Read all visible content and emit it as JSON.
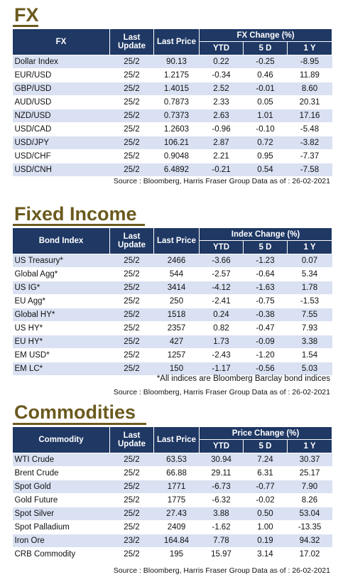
{
  "fx": {
    "title": "FX",
    "headers": {
      "name": "FX",
      "update": "Last Update",
      "price": "Last Price",
      "group": "FX Change (%)",
      "ytd": "YTD",
      "d5": "5 D",
      "y1": "1 Y"
    },
    "rows": [
      {
        "name": "Dollar Index",
        "update": "25/2",
        "price": "90.13",
        "ytd": "0.22",
        "d5": "-0.25",
        "y1": "-8.95"
      },
      {
        "name": "EUR/USD",
        "update": "25/2",
        "price": "1.2175",
        "ytd": "-0.34",
        "d5": "0.46",
        "y1": "11.89"
      },
      {
        "name": "GBP/USD",
        "update": "25/2",
        "price": "1.4015",
        "ytd": "2.52",
        "d5": "-0.01",
        "y1": "8.60"
      },
      {
        "name": "AUD/USD",
        "update": "25/2",
        "price": "0.7873",
        "ytd": "2.33",
        "d5": "0.05",
        "y1": "20.31"
      },
      {
        "name": "NZD/USD",
        "update": "25/2",
        "price": "0.7373",
        "ytd": "2.63",
        "d5": "1.01",
        "y1": "17.16"
      },
      {
        "name": "USD/CAD",
        "update": "25/2",
        "price": "1.2603",
        "ytd": "-0.96",
        "d5": "-0.10",
        "y1": "-5.48"
      },
      {
        "name": "USD/JPY",
        "update": "25/2",
        "price": "106.21",
        "ytd": "2.87",
        "d5": "0.72",
        "y1": "-3.82"
      },
      {
        "name": "USD/CHF",
        "update": "25/2",
        "price": "0.9048",
        "ytd": "2.21",
        "d5": "0.95",
        "y1": "-7.37"
      },
      {
        "name": "USD/CNH",
        "update": "25/2",
        "price": "6.4892",
        "ytd": "-0.21",
        "d5": "0.54",
        "y1": "-7.58"
      }
    ],
    "source": "Source : Bloomberg, Harris Fraser Group Data as of : 26-02-2021"
  },
  "fixed_income": {
    "title": "Fixed Income",
    "headers": {
      "name": "Bond Index",
      "update": "Last Update",
      "price": "Last Price",
      "group": "Index Change (%)",
      "ytd": "YTD",
      "d5": "5 D",
      "y1": "1 Y"
    },
    "rows": [
      {
        "name": "US Treasury*",
        "update": "25/2",
        "price": "2466",
        "ytd": "-3.66",
        "d5": "-1.23",
        "y1": "0.07"
      },
      {
        "name": "Global Agg*",
        "update": "25/2",
        "price": "544",
        "ytd": "-2.57",
        "d5": "-0.64",
        "y1": "5.34"
      },
      {
        "name": "US IG*",
        "update": "25/2",
        "price": "3414",
        "ytd": "-4.12",
        "d5": "-1.63",
        "y1": "1.78"
      },
      {
        "name": "EU Agg*",
        "update": "25/2",
        "price": "250",
        "ytd": "-2.41",
        "d5": "-0.75",
        "y1": "-1.53"
      },
      {
        "name": "Global HY*",
        "update": "25/2",
        "price": "1518",
        "ytd": "0.24",
        "d5": "-0.38",
        "y1": "7.55"
      },
      {
        "name": "US HY*",
        "update": "25/2",
        "price": "2357",
        "ytd": "0.82",
        "d5": "-0.47",
        "y1": "7.93"
      },
      {
        "name": "EU HY*",
        "update": "25/2",
        "price": "427",
        "ytd": "1.73",
        "d5": "-0.09",
        "y1": "3.38"
      },
      {
        "name": "EM USD*",
        "update": "25/2",
        "price": "1257",
        "ytd": "-2.43",
        "d5": "-1.20",
        "y1": "1.54"
      },
      {
        "name": "EM LC*",
        "update": "25/2",
        "price": "150",
        "ytd": "-1.17",
        "d5": "-0.56",
        "y1": "5.03"
      }
    ],
    "footnote": "*All indices are Bloomberg Barclay bond indices",
    "source": "Source : Bloomberg, Harris Fraser Group Data as of : 26-02-2021"
  },
  "commodities": {
    "title": "Commodities",
    "headers": {
      "name": "Commodity",
      "update": "Last Update",
      "price": "Last Price",
      "group": "Price Change (%)",
      "ytd": "YTD",
      "d5": "5 D",
      "y1": "1 Y"
    },
    "rows": [
      {
        "name": "WTI Crude",
        "update": "25/2",
        "price": "63.53",
        "ytd": "30.94",
        "d5": "7.24",
        "y1": "30.37"
      },
      {
        "name": "Brent Crude",
        "update": "25/2",
        "price": "66.88",
        "ytd": "29.11",
        "d5": "6.31",
        "y1": "25.17"
      },
      {
        "name": "Spot Gold",
        "update": "25/2",
        "price": "1771",
        "ytd": "-6.73",
        "d5": "-0.77",
        "y1": "7.90"
      },
      {
        "name": "Gold Future",
        "update": "25/2",
        "price": "1775",
        "ytd": "-6.32",
        "d5": "-0.02",
        "y1": "8.26"
      },
      {
        "name": "Spot Silver",
        "update": "25/2",
        "price": "27.43",
        "ytd": "3.88",
        "d5": "0.50",
        "y1": "53.04"
      },
      {
        "name": "Spot Palladium",
        "update": "25/2",
        "price": "2409",
        "ytd": "-1.62",
        "d5": "1.00",
        "y1": "-13.35"
      },
      {
        "name": "Iron Ore",
        "update": "23/2",
        "price": "164.84",
        "ytd": "7.78",
        "d5": "0.19",
        "y1": "94.32"
      },
      {
        "name": "CRB Commodity",
        "update": "25/2",
        "price": "195",
        "ytd": "15.97",
        "d5": "3.14",
        "y1": "17.02"
      }
    ],
    "source": "Source : Bloomberg, Harris Fraser Group Data as of : 26-02-2021"
  }
}
